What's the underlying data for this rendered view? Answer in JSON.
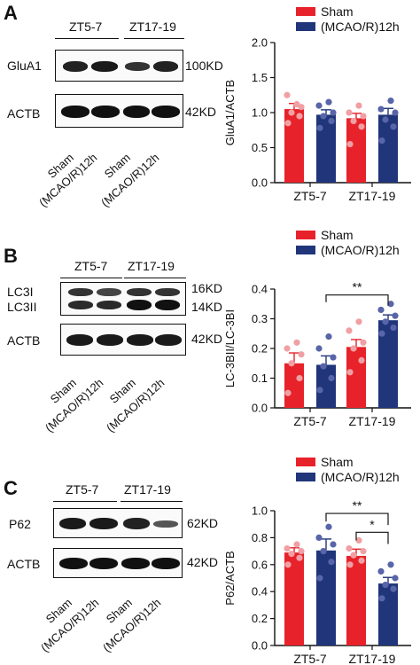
{
  "colors": {
    "sham": "#e8222a",
    "mcao": "#20357a",
    "sham_dot": "#f0a0a4",
    "mcao_dot": "#5865a8"
  },
  "panels": [
    {
      "letter": "A",
      "groups": [
        "ZT5-7",
        "ZT17-19"
      ],
      "rows": [
        {
          "name": "GluA1",
          "kd": "100KD"
        },
        {
          "name": "ACTB",
          "kd": "42KD"
        }
      ],
      "samples": [
        "Sham",
        "(MCAO/R)12h",
        "Sham",
        "(MCAO/R)12h"
      ],
      "chart_data": {
        "type": "bar",
        "categories": [
          "ZT5-7",
          "ZT17-19"
        ],
        "series": [
          {
            "name": "Sham",
            "values": [
              1.05,
              0.92
            ],
            "errors": [
              0.08,
              0.07
            ],
            "points": [
              [
                0.85,
                0.95,
                1.0,
                1.08,
                1.25,
                1.12
              ],
              [
                0.55,
                0.8,
                0.88,
                0.95,
                1.0,
                1.1
              ]
            ]
          },
          {
            "name": "(MCAO/R)12h",
            "values": [
              0.97,
              0.97
            ],
            "errors": [
              0.07,
              0.09
            ],
            "points": [
              [
                0.78,
                0.88,
                0.95,
                1.0,
                1.1,
                1.15
              ],
              [
                0.6,
                0.8,
                0.9,
                1.0,
                1.05,
                1.17
              ]
            ]
          }
        ],
        "ylabel": "GluA1/ACTB",
        "yticks": [
          "0.0",
          "0.5",
          "1.0",
          "1.5",
          "2.0"
        ],
        "ylim": [
          0,
          2
        ],
        "significance": []
      }
    },
    {
      "letter": "B",
      "groups": [
        "ZT5-7",
        "ZT17-19"
      ],
      "rows": [
        {
          "name": "LC3I",
          "name2": "LC3II",
          "kd": "16KD",
          "kd2": "14KD"
        },
        {
          "name": "ACTB",
          "kd": "42KD"
        }
      ],
      "samples": [
        "Sham",
        "(MCAO/R)12h",
        "Sham",
        "(MCAO/R)12h"
      ],
      "chart_data": {
        "type": "bar",
        "categories": [
          "ZT5-7",
          "ZT17-19"
        ],
        "series": [
          {
            "name": "Sham",
            "values": [
              0.15,
              0.205
            ],
            "errors": [
              0.035,
              0.025
            ],
            "points": [
              [
                0.05,
                0.1,
                0.15,
                0.18,
                0.2,
                0.22
              ],
              [
                0.12,
                0.16,
                0.2,
                0.22,
                0.26,
                0.29
              ]
            ]
          },
          {
            "name": "(MCAO/R)12h",
            "values": [
              0.145,
              0.295
            ],
            "errors": [
              0.03,
              0.018
            ],
            "points": [
              [
                0.06,
                0.1,
                0.14,
                0.17,
                0.2,
                0.24
              ],
              [
                0.25,
                0.27,
                0.29,
                0.31,
                0.33,
                0.35
              ]
            ]
          }
        ],
        "ylabel": "LC-3BII/LC-3BI",
        "yticks": [
          "0.0",
          "0.1",
          "0.2",
          "0.3",
          "0.4"
        ],
        "ylim": [
          0,
          0.4
        ],
        "significance": [
          {
            "label": "**",
            "from": [
              0,
              1
            ],
            "to": [
              1,
              1
            ],
            "level": 0.38
          }
        ]
      }
    },
    {
      "letter": "C",
      "groups": [
        "ZT5-7",
        "ZT17-19"
      ],
      "rows": [
        {
          "name": "P62",
          "kd": "62KD"
        },
        {
          "name": "ACTB",
          "kd": "42KD"
        }
      ],
      "samples": [
        "Sham",
        "(MCAO/R)12h",
        "Sham",
        "(MCAO/R)12h"
      ],
      "chart_data": {
        "type": "bar",
        "categories": [
          "ZT5-7",
          "ZT17-19"
        ],
        "series": [
          {
            "name": "Sham",
            "values": [
              0.69,
              0.665
            ],
            "errors": [
              0.035,
              0.05
            ],
            "points": [
              [
                0.6,
                0.65,
                0.68,
                0.7,
                0.72,
                0.75
              ],
              [
                0.6,
                0.63,
                0.67,
                0.7,
                0.72,
                0.78
              ]
            ]
          },
          {
            "name": "(MCAO/R)12h",
            "values": [
              0.705,
              0.46
            ],
            "errors": [
              0.085,
              0.045
            ],
            "points": [
              [
                0.5,
                0.62,
                0.7,
                0.75,
                0.8,
                0.88
              ],
              [
                0.35,
                0.42,
                0.45,
                0.5,
                0.55,
                0.6
              ]
            ]
          }
        ],
        "ylabel": "P62/ACTB",
        "yticks": [
          "0.0",
          "0.2",
          "0.4",
          "0.6",
          "0.8",
          "1.0"
        ],
        "ylim": [
          0,
          1.0
        ],
        "significance": [
          {
            "label": "**",
            "from": [
              0,
              1
            ],
            "to": [
              1,
              1
            ],
            "level": 0.98
          },
          {
            "label": "*",
            "from": [
              1,
              0
            ],
            "to": [
              1,
              1
            ],
            "level": 0.84
          }
        ]
      }
    }
  ]
}
